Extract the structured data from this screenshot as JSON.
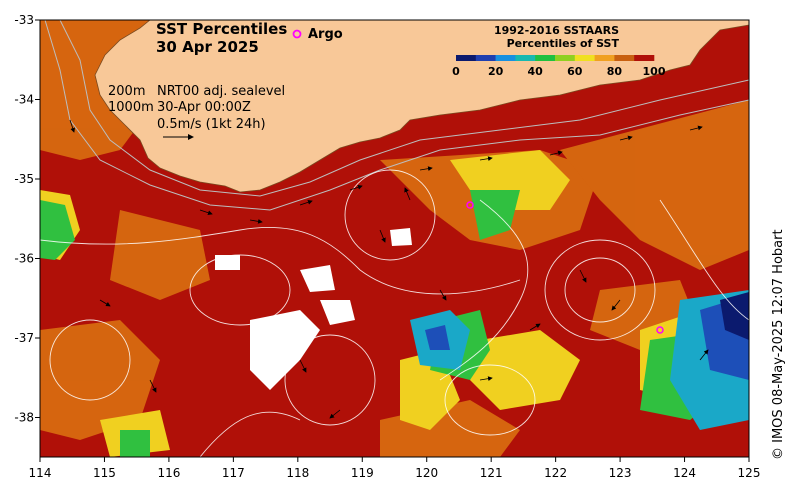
{
  "title": {
    "line1": "SST Percentiles",
    "line2": "30 Apr 2025"
  },
  "argo_label": "Argo",
  "annotations": {
    "contour_200": "200m",
    "contour_1000": "1000m",
    "product": "NRT00 adj. sealevel",
    "time": "30-Apr 00:00Z",
    "vector_scale": "0.5m/s (1kt 24h)"
  },
  "legend": {
    "title1": "1992-2016 SSTAARS",
    "title2": "Percentiles of SST",
    "ticks": [
      "0",
      "20",
      "40",
      "60",
      "80",
      "100"
    ],
    "colors": [
      "#0b1a6e",
      "#1f3fb0",
      "#1890e0",
      "#18b8b0",
      "#20c040",
      "#90d020",
      "#f0e020",
      "#f0a020",
      "#c86010",
      "#b01008"
    ]
  },
  "axes": {
    "x_ticks": [
      "114",
      "115",
      "116",
      "117",
      "118",
      "119",
      "120",
      "121",
      "122",
      "123",
      "124",
      "125"
    ],
    "y_ticks": [
      "-33",
      "-34",
      "-35",
      "-36",
      "-37",
      "-38"
    ]
  },
  "credit": "© IMOS 08-May-2025 12:07 Hobart",
  "colors": {
    "land": "#f8c898",
    "high": "#b01008",
    "orange": "#d86a10",
    "yellow": "#f0d020",
    "green": "#30c040",
    "cyan": "#1aa8c8",
    "blue": "#1d4fb8",
    "navy": "#0b1a6e",
    "argo": "#ff00ff"
  }
}
